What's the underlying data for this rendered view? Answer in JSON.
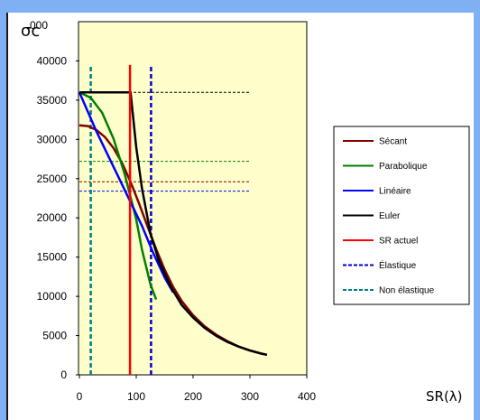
{
  "chart_data": {
    "type": "line",
    "xlabel": "SR(λ)",
    "ylabel": "σc",
    "ylabel_overlap_tick": "000",
    "xlim": [
      0,
      400
    ],
    "ylim": [
      0,
      45000
    ],
    "x_ticks": [
      0,
      100,
      200,
      300,
      400
    ],
    "y_ticks": [
      0,
      5000,
      10000,
      15000,
      20000,
      25000,
      30000,
      35000,
      40000
    ],
    "grid": false,
    "plot_background": "#ffffcc",
    "legend_position": "right",
    "series": [
      {
        "name": "Sécant",
        "color": "#800000",
        "style": "solid",
        "points": [
          [
            0,
            31800
          ],
          [
            15,
            31700
          ],
          [
            30,
            31200
          ],
          [
            45,
            30300
          ],
          [
            60,
            28900
          ],
          [
            75,
            27000
          ],
          [
            90,
            24600
          ],
          [
            105,
            21800
          ],
          [
            120,
            18900
          ],
          [
            135,
            16000
          ],
          [
            150,
            13400
          ],
          [
            165,
            11200
          ],
          [
            180,
            9400
          ],
          [
            200,
            7600
          ],
          [
            220,
            6200
          ],
          [
            240,
            5150
          ],
          [
            260,
            4300
          ],
          [
            280,
            3600
          ],
          [
            300,
            3100
          ],
          [
            320,
            2700
          ],
          [
            330,
            2550
          ]
        ]
      },
      {
        "name": "Parabolique",
        "color": "#008000",
        "style": "solid",
        "points": [
          [
            0,
            36000
          ],
          [
            20,
            35300
          ],
          [
            40,
            33400
          ],
          [
            60,
            30100
          ],
          [
            80,
            25500
          ],
          [
            100,
            19800
          ],
          [
            110,
            16000
          ],
          [
            125,
            11500
          ],
          [
            135,
            9600
          ]
        ]
      },
      {
        "name": "Linéaire",
        "color": "#0000ff",
        "style": "solid",
        "points": [
          [
            0,
            36000
          ],
          [
            30,
            31000
          ],
          [
            60,
            26500
          ],
          [
            90,
            22000
          ],
          [
            110,
            19000
          ],
          [
            130,
            15500
          ],
          [
            150,
            12400
          ],
          [
            165,
            10500
          ]
        ]
      },
      {
        "name": "Euler",
        "color": "#000000",
        "style": "solid",
        "points": [
          [
            0,
            36000
          ],
          [
            90,
            36000
          ],
          [
            100,
            29000
          ],
          [
            110,
            23800
          ],
          [
            125,
            18000
          ],
          [
            140,
            14500
          ],
          [
            160,
            11300
          ],
          [
            180,
            8900
          ],
          [
            200,
            7300
          ],
          [
            220,
            6000
          ],
          [
            240,
            5000
          ],
          [
            260,
            4200
          ],
          [
            280,
            3600
          ],
          [
            300,
            3100
          ],
          [
            320,
            2700
          ],
          [
            330,
            2550
          ]
        ]
      },
      {
        "name": "SR actuel",
        "color": "#ff0000",
        "style": "solid",
        "points": [
          [
            89,
            0
          ],
          [
            89,
            39500
          ]
        ]
      },
      {
        "name": "Élastique",
        "color": "#0000cc",
        "style": "dashed",
        "points": [
          [
            126,
            0
          ],
          [
            126,
            39500
          ]
        ]
      },
      {
        "name": "Non élastique",
        "color": "#008080",
        "style": "dashed",
        "points": [
          [
            20,
            0
          ],
          [
            20,
            39500
          ]
        ]
      }
    ],
    "reference_lines": [
      {
        "y": 36000,
        "color": "#000000"
      },
      {
        "y": 27200,
        "color": "#008000"
      },
      {
        "y": 24600,
        "color": "#800000"
      },
      {
        "y": 23400,
        "color": "#0000ff"
      }
    ]
  }
}
